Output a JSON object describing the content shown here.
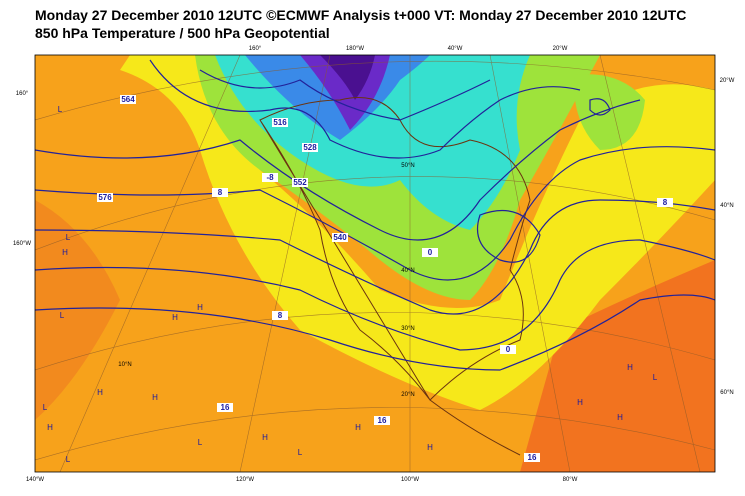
{
  "header": {
    "title": "Monday 27 December 2010 12UTC ©ECMWF Analysis t+000 VT: Monday 27 December 2010 12UTC",
    "subtitle": "850 hPa Temperature / 500 hPa Geopotential"
  },
  "map": {
    "lon_labels_top": [
      "160°",
      "180°W",
      "40°W",
      "20°W"
    ],
    "lon_labels_bottom": [
      "140°W",
      "120°W",
      "100°W",
      "80°W"
    ],
    "lat_labels_left": [
      "160°",
      "160°W"
    ],
    "lat_labels_right": [
      "20°W",
      "40°N",
      "60°N"
    ],
    "lat_labels_inner": [
      "50°N",
      "40°N",
      "30°N",
      "20°N",
      "10°N"
    ],
    "contour_labels": [
      "564",
      "576",
      "552",
      "540",
      "528",
      "516",
      "8",
      "0",
      "-8",
      "16",
      "16",
      "16",
      "0",
      "8",
      "8"
    ],
    "pressure_centers": [
      "L",
      "L",
      "L",
      "H",
      "H",
      "H",
      "H",
      "L",
      "H",
      "H",
      "L",
      "H",
      "L",
      "H",
      "H",
      "L",
      "H",
      "L",
      "H",
      "H"
    ]
  }
}
